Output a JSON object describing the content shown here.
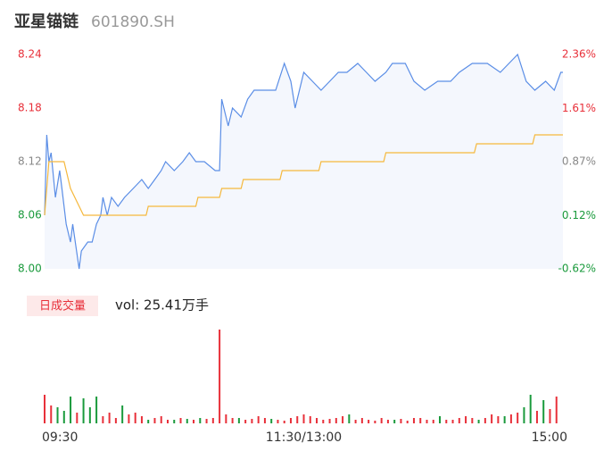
{
  "chart_data": [
    {
      "type": "line",
      "title": "亚星锚链",
      "subtitle": "601890.SH",
      "xlim": [
        0,
        240
      ],
      "ylim": [
        8.0,
        8.24
      ],
      "yticks": [
        {
          "value": 8.0,
          "label": "8.00"
        },
        8.06,
        8.12,
        8.18,
        8.24
      ],
      "ytick_colors": [
        "#1a9a3c",
        "#1a9a3c",
        "#888888",
        "#e8303a",
        "#e8303a"
      ],
      "y2lim": [
        -0.62,
        2.36
      ],
      "y2ticks": [
        {
          "value": -0.62,
          "label": "-0.62%"
        },
        {
          "value": 0.12,
          "label": "0.12%"
        },
        {
          "value": 0.87,
          "label": "0.87%"
        },
        {
          "value": 1.61,
          "label": "1.61%"
        },
        {
          "value": 2.36,
          "label": "2.36%"
        }
      ],
      "series": [
        {
          "color": "#5b8ee6",
          "fill": "#f4f7fd",
          "x": [
            0,
            1,
            2,
            3,
            5,
            7,
            8,
            10,
            12,
            13,
            16,
            17,
            20,
            22,
            24,
            26,
            27,
            29,
            31,
            34,
            37,
            41,
            45,
            48,
            51,
            54,
            56,
            60,
            64,
            67,
            70,
            74,
            79,
            81,
            82,
            85,
            87,
            91,
            94,
            97,
            100,
            103,
            107,
            111,
            114,
            116,
            120,
            124,
            128,
            132,
            136,
            140,
            145,
            149,
            153,
            158,
            161,
            167,
            171,
            176,
            182,
            188,
            192,
            198,
            205,
            211,
            215,
            219,
            223,
            227,
            232,
            236,
            239,
            240
          ],
          "values": [
            8.06,
            8.15,
            8.12,
            8.13,
            8.08,
            8.11,
            8.09,
            8.05,
            8.03,
            8.05,
            8.0,
            8.02,
            8.03,
            8.03,
            8.05,
            8.06,
            8.08,
            8.06,
            8.08,
            8.07,
            8.08,
            8.09,
            8.1,
            8.09,
            8.1,
            8.11,
            8.12,
            8.11,
            8.12,
            8.13,
            8.12,
            8.12,
            8.11,
            8.11,
            8.19,
            8.16,
            8.18,
            8.17,
            8.19,
            8.2,
            8.2,
            8.2,
            8.2,
            8.23,
            8.21,
            8.18,
            8.22,
            8.21,
            8.2,
            8.21,
            8.22,
            8.22,
            8.23,
            8.22,
            8.21,
            8.22,
            8.23,
            8.23,
            8.21,
            8.2,
            8.21,
            8.21,
            8.22,
            8.23,
            8.23,
            8.22,
            8.23,
            8.24,
            8.21,
            8.2,
            8.21,
            8.2,
            8.22,
            8.22
          ]
        },
        {
          "color": "#f5b83d",
          "x": [
            0,
            2,
            9,
            12,
            18,
            47,
            48,
            70,
            71,
            81,
            82,
            91,
            92,
            109,
            110,
            127,
            128,
            157,
            158,
            199,
            200,
            226,
            227,
            240
          ],
          "values": [
            8.06,
            8.12,
            8.12,
            8.09,
            8.06,
            8.06,
            8.07,
            8.07,
            8.08,
            8.08,
            8.09,
            8.09,
            8.1,
            8.1,
            8.11,
            8.11,
            8.12,
            8.12,
            8.13,
            8.13,
            8.14,
            8.14,
            8.15,
            8.15
          ]
        }
      ]
    },
    {
      "type": "bar",
      "legend_label": "日成交量",
      "annotation": "vol: 25.41万手",
      "xlim": [
        0,
        240
      ],
      "xticks": [
        {
          "value": 0,
          "label": "09:30"
        },
        {
          "value": 120,
          "label": "11:30/13:00"
        },
        {
          "value": 240,
          "label": "15:00"
        }
      ],
      "up_color": "#e8303a",
      "down_color": "#1a9a3c",
      "x": [
        0,
        3,
        6,
        9,
        12,
        15,
        18,
        21,
        24,
        27,
        30,
        33,
        36,
        39,
        42,
        45,
        48,
        51,
        54,
        57,
        60,
        63,
        66,
        69,
        72,
        75,
        78,
        81,
        84,
        87,
        90,
        93,
        96,
        99,
        102,
        105,
        108,
        111,
        114,
        117,
        120,
        123,
        126,
        129,
        132,
        135,
        138,
        141,
        144,
        147,
        150,
        153,
        156,
        159,
        162,
        165,
        168,
        171,
        174,
        177,
        180,
        183,
        186,
        189,
        192,
        195,
        198,
        201,
        204,
        207,
        210,
        213,
        216,
        219,
        222,
        225,
        228,
        231,
        234,
        237
      ],
      "values": [
        2880,
        1800,
        1620,
        1260,
        2700,
        1080,
        2520,
        1620,
        2700,
        720,
        1080,
        540,
        1800,
        900,
        1080,
        720,
        360,
        540,
        720,
        360,
        360,
        540,
        450,
        360,
        540,
        450,
        540,
        9450,
        900,
        540,
        540,
        360,
        450,
        720,
        540,
        450,
        360,
        270,
        540,
        720,
        900,
        720,
        540,
        360,
        450,
        540,
        720,
        900,
        360,
        540,
        360,
        270,
        540,
        360,
        360,
        450,
        270,
        540,
        540,
        360,
        360,
        720,
        360,
        360,
        540,
        720,
        540,
        360,
        540,
        900,
        720,
        720,
        900,
        1080,
        1620,
        2880,
        1260,
        2340,
        1440,
        2700
      ],
      "up": [
        true,
        true,
        false,
        false,
        false,
        true,
        false,
        false,
        false,
        true,
        true,
        true,
        false,
        true,
        true,
        true,
        false,
        true,
        true,
        true,
        false,
        true,
        false,
        true,
        false,
        true,
        true,
        true,
        true,
        true,
        false,
        true,
        true,
        true,
        true,
        false,
        true,
        true,
        true,
        true,
        true,
        true,
        true,
        true,
        true,
        true,
        true,
        false,
        true,
        true,
        true,
        true,
        true,
        true,
        false,
        true,
        true,
        true,
        true,
        true,
        true,
        false,
        true,
        true,
        true,
        true,
        true,
        false,
        true,
        true,
        true,
        false,
        true,
        true,
        false,
        false,
        true,
        false,
        true,
        true
      ]
    }
  ]
}
